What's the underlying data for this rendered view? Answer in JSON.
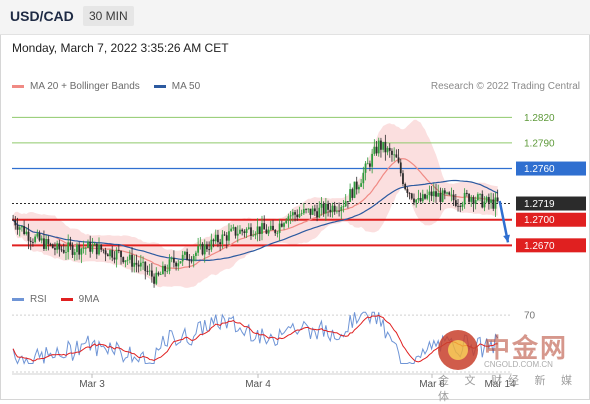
{
  "header": {
    "symbol": "USD/CAD",
    "timeframe": "30 MIN",
    "datetime": "Monday, March 7, 2022 3:35:26 AM CET",
    "copyright": "Research © 2022 Trading Central"
  },
  "legend": {
    "ma20": "MA 20 + Bollinger Bands",
    "ma50": "MA 50",
    "rsi": "RSI",
    "ma9": "9MA"
  },
  "colors": {
    "ma20": "#f08a84",
    "ma50": "#2c5aa0",
    "band": "#f9d2d2",
    "bull": "#2e9b3c",
    "bear": "#2b2b2b",
    "support": "#e02020",
    "resistance": "#8fc96b",
    "pivot": "#2f6fd0",
    "current": "#2b2b2b",
    "rsi": "#6f95d6",
    "rsi_ma": "#e02020",
    "arrow": "#2f6fd0"
  },
  "watermark": {
    "brand": "中金网",
    "url": "CNGOLD.COM.CN",
    "tagline": "金 文 财经 新 媒 体"
  },
  "chart_data": [
    {
      "type": "candlestick",
      "series": [
        {
          "name": "MA 20 + Bollinger Bands"
        },
        {
          "name": "MA 50"
        }
      ],
      "ylim": [
        1.262,
        1.2845
      ],
      "x_ticks": [
        "Mar 3",
        "Mar 4",
        "Mar 6",
        "Mar 14"
      ],
      "levels": [
        {
          "value": 1.282,
          "label": "1.2820",
          "kind": "resistance"
        },
        {
          "value": 1.279,
          "label": "1.2790",
          "kind": "resistance"
        },
        {
          "value": 1.276,
          "label": "1.2760",
          "kind": "pivot"
        },
        {
          "value": 1.2719,
          "label": "1.2719",
          "kind": "current"
        },
        {
          "value": 1.27,
          "label": "1.2700",
          "kind": "support"
        },
        {
          "value": 1.267,
          "label": "1.2670",
          "kind": "support"
        }
      ],
      "arrow": {
        "from": 1.2722,
        "to": 1.267
      }
    },
    {
      "type": "line",
      "series": [
        {
          "name": "RSI"
        },
        {
          "name": "9MA"
        }
      ],
      "ylim": [
        30,
        75
      ],
      "y_ticks": [
        70
      ]
    }
  ]
}
